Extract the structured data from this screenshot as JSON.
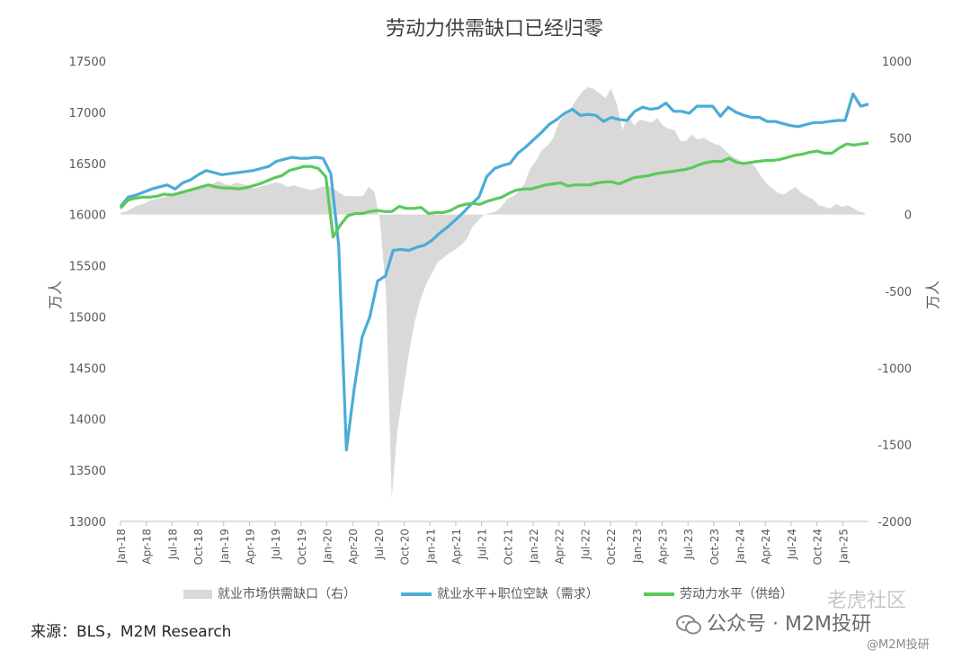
{
  "chart_data": {
    "type": "combo",
    "title": "劳动力供需缺口已经归零",
    "ylabel_left": "万人",
    "ylabel_right": "万人",
    "ylim_left": [
      13000,
      17500
    ],
    "ylim_right": [
      -2000,
      1000
    ],
    "yticks_left": [
      "17500",
      "17000",
      "16500",
      "16000",
      "15500",
      "15000",
      "14500",
      "14000",
      "13500",
      "13000"
    ],
    "yticks_right": [
      "1000",
      "500",
      "0",
      "-500",
      "-1000",
      "-1500",
      "-2000"
    ],
    "xtick_labels": [
      "Jan-18",
      "Apr-18",
      "Jul-18",
      "Oct-18",
      "Jan-19",
      "Apr-19",
      "Jul-19",
      "Oct-19",
      "Jan-20",
      "Apr-20",
      "Jul-20",
      "Oct-20",
      "Jan-21",
      "Apr-21",
      "Jul-21",
      "Oct-21",
      "Jan-22",
      "Apr-22",
      "Jul-22",
      "Oct-22",
      "Jan-23",
      "Apr-23",
      "Jul-23",
      "Oct-23",
      "Jan-24",
      "Apr-24",
      "Jul-24",
      "Oct-24",
      "Jan-25"
    ],
    "series": [
      {
        "name": "就业市场供需缺口（右）",
        "type": "area",
        "axis": "right",
        "color": "#d9d9d9",
        "values": [
          10,
          20,
          40,
          60,
          70,
          90,
          100,
          110,
          120,
          130,
          150,
          160,
          150,
          170,
          190,
          180,
          200,
          220,
          200,
          190,
          210,
          200,
          190,
          170,
          180,
          190,
          200,
          210,
          200,
          180,
          190,
          180,
          170,
          160,
          170,
          180,
          190,
          170,
          140,
          120,
          120,
          120,
          120,
          180,
          150,
          -50,
          -500,
          -1850,
          -1400,
          -1150,
          -900,
          -700,
          -550,
          -450,
          -380,
          -310,
          -280,
          -250,
          -230,
          -200,
          -160,
          -80,
          -40,
          0,
          10,
          20,
          50,
          100,
          120,
          150,
          200,
          300,
          350,
          420,
          450,
          500,
          600,
          650,
          690,
          750,
          800,
          830,
          820,
          790,
          760,
          820,
          720,
          550,
          650,
          580,
          620,
          610,
          600,
          630,
          580,
          560,
          550,
          480,
          480,
          520,
          490,
          500,
          480,
          460,
          450,
          410,
          380,
          360,
          330,
          350,
          310,
          250,
          200,
          170,
          140,
          130,
          160,
          180,
          140,
          120,
          100,
          60,
          50,
          40,
          70,
          50,
          60,
          40,
          20,
          10
        ],
        "note_values_are_in_right_axis_units": true
      },
      {
        "name": "就业水平+职位空缺（需求）",
        "type": "line",
        "axis": "left",
        "color": "#4bacd6",
        "values": [
          16080,
          16170,
          16190,
          16220,
          16250,
          16270,
          16290,
          16250,
          16310,
          16340,
          16390,
          16430,
          16410,
          16390,
          16400,
          16410,
          16420,
          16430,
          16450,
          16470,
          16520,
          16540,
          16560,
          16550,
          16550,
          16560,
          16550,
          16400,
          15700,
          13700,
          14300,
          14800,
          15000,
          15350,
          15400,
          15650,
          15660,
          15650,
          15680,
          15700,
          15750,
          15820,
          15880,
          15950,
          16020,
          16100,
          16170,
          16370,
          16450,
          16480,
          16500,
          16600,
          16660,
          16730,
          16800,
          16880,
          16930,
          16990,
          17030,
          16970,
          16980,
          16970,
          16910,
          16950,
          16930,
          16920,
          17010,
          17050,
          17030,
          17040,
          17090,
          17010,
          17010,
          16990,
          17060,
          17060,
          17060,
          16960,
          17050,
          17000,
          16970,
          16950,
          16950,
          16910,
          16910,
          16890,
          16870,
          16860,
          16880,
          16900,
          16900,
          16910,
          16920,
          16920,
          17180,
          17060,
          17080
        ]
      },
      {
        "name": "劳动力水平（供给）",
        "type": "line",
        "axis": "left",
        "color": "#5bc95c",
        "values": [
          16060,
          16140,
          16160,
          16170,
          16170,
          16180,
          16200,
          16190,
          16210,
          16230,
          16250,
          16270,
          16290,
          16270,
          16260,
          16260,
          16250,
          16260,
          16280,
          16300,
          16330,
          16360,
          16380,
          16430,
          16450,
          16470,
          16470,
          16450,
          16370,
          15780,
          15900,
          15990,
          16010,
          16010,
          16030,
          16040,
          16030,
          16030,
          16080,
          16060,
          16060,
          16070,
          16010,
          16020,
          16020,
          16040,
          16080,
          16100,
          16110,
          16100,
          16130,
          16150,
          16170,
          16210,
          16240,
          16250,
          16250,
          16270,
          16290,
          16300,
          16310,
          16280,
          16290,
          16290,
          16290,
          16310,
          16320,
          16320,
          16300,
          16330,
          16360,
          16370,
          16380,
          16400,
          16410,
          16420,
          16430,
          16440,
          16460,
          16490,
          16510,
          16520,
          16520,
          16550,
          16510,
          16500,
          16510,
          16520,
          16530,
          16530,
          16540,
          16560,
          16580,
          16590,
          16610,
          16620,
          16600,
          16600,
          16650,
          16690,
          16680,
          16690,
          16700
        ]
      }
    ]
  },
  "legend": {
    "gap": "就业市场供需缺口（右）",
    "demand": "就业水平+职位空缺（需求）",
    "supply": "劳动力水平（供给）"
  },
  "source": "来源：BLS，M2M Research",
  "watermark": {
    "main": "公众号 · M2M投研",
    "sub": "@M2M投研",
    "top": "老虎社区"
  }
}
